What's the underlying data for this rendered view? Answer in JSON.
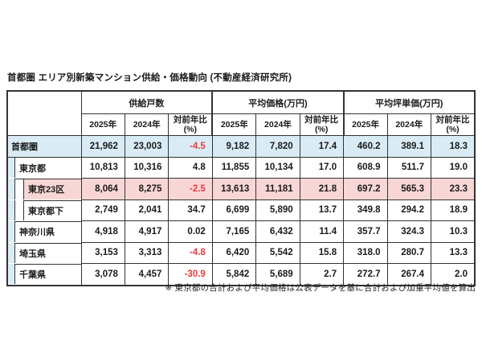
{
  "colors": {
    "border": "#333333",
    "text": "#1a1a1a",
    "highlight_blue": "#d9ecf6",
    "highlight_pink": "#f9d6d6",
    "negative": "#eb3b3b"
  },
  "chart_data": {
    "type": "table",
    "title": "首都圏 エリア別新築マンション供給・価格動向 (不動産経済研究所)",
    "footnote": "※ 東京都の合計および平均価格は公表データを基に合計および加重平均値を算出",
    "column_groups": [
      {
        "label": "供給戸数",
        "sub_columns": [
          "2025年",
          "2024年",
          "対前年比\n(%)"
        ]
      },
      {
        "label": "平均価格(万円)",
        "sub_columns": [
          "2025年",
          "2024年",
          "対前年比\n(%)"
        ]
      },
      {
        "label": "平均坪単価(万円)",
        "sub_columns": [
          "2025年",
          "2024年",
          "対前年比\n(%)"
        ]
      }
    ],
    "rows": [
      {
        "label": "首都圏",
        "level": 0,
        "highlight": "blue",
        "values": [
          "21,962",
          "23,003",
          "-4.5",
          "9,182",
          "7,820",
          "17.4",
          "460.2",
          "389.1",
          "18.3"
        ]
      },
      {
        "label": "東京都",
        "level": 1,
        "highlight": "none",
        "values": [
          "10,813",
          "10,316",
          "4.8",
          "11,855",
          "10,134",
          "17.0",
          "608.9",
          "511.7",
          "19.0"
        ]
      },
      {
        "label": "東京23区",
        "level": 2,
        "highlight": "pink",
        "values": [
          "8,064",
          "8,275",
          "-2.5",
          "13,613",
          "11,181",
          "21.8",
          "697.2",
          "565.3",
          "23.3"
        ]
      },
      {
        "label": "東京都下",
        "level": 2,
        "highlight": "none",
        "values": [
          "2,749",
          "2,041",
          "34.7",
          "6,699",
          "5,890",
          "13.7",
          "349.8",
          "294.2",
          "18.9"
        ]
      },
      {
        "label": "神奈川県",
        "level": 1,
        "highlight": "none",
        "values": [
          "4,918",
          "4,917",
          "0.02",
          "7,165",
          "6,432",
          "11.4",
          "357.7",
          "324.3",
          "10.3"
        ]
      },
      {
        "label": "埼玉県",
        "level": 1,
        "highlight": "none",
        "values": [
          "3,153",
          "3,313",
          "-4.8",
          "6,420",
          "5,542",
          "15.8",
          "318.0",
          "280.7",
          "13.3"
        ]
      },
      {
        "label": "千葉県",
        "level": 1,
        "highlight": "none",
        "values": [
          "3,078",
          "4,457",
          "-30.9",
          "5,842",
          "5,689",
          "2.7",
          "272.7",
          "267.4",
          "2.0"
        ]
      }
    ]
  }
}
